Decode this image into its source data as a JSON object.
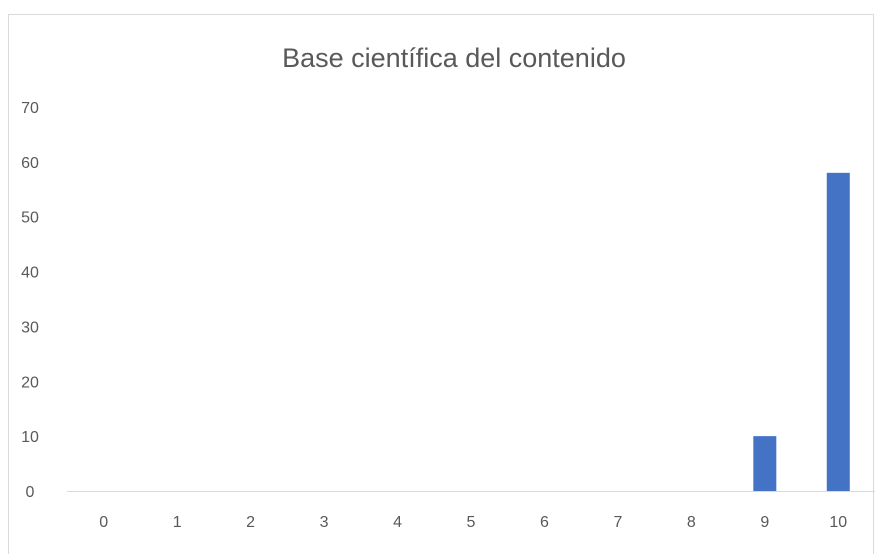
{
  "chart_data": {
    "type": "bar",
    "title": "Base científica del contenido",
    "xlabel": "",
    "ylabel": "",
    "categories": [
      "0",
      "1",
      "2",
      "3",
      "4",
      "5",
      "6",
      "7",
      "8",
      "9",
      "10"
    ],
    "values": [
      0,
      0,
      0,
      0,
      0,
      0,
      0,
      0,
      0,
      10,
      58
    ],
    "ylim": [
      0,
      70
    ],
    "yticks": [
      0,
      10,
      20,
      30,
      40,
      50,
      60,
      70
    ],
    "grid": false,
    "legend": "none",
    "colors": {
      "bar": "#4472c4",
      "axis": "#d9d9d9",
      "text": "#595959"
    }
  }
}
